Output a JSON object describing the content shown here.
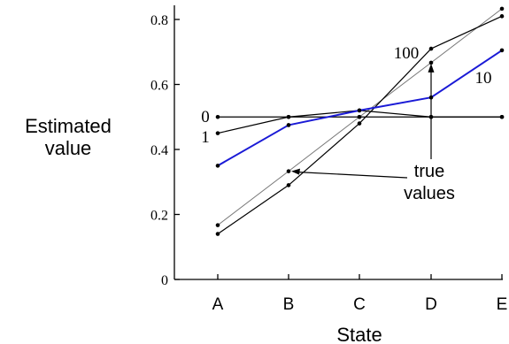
{
  "chart_data": {
    "type": "line",
    "title": "",
    "xlabel": "State",
    "ylabel_lines": [
      "Estimated",
      "value"
    ],
    "categories": [
      "A",
      "B",
      "C",
      "D",
      "E"
    ],
    "yticks": [
      "0",
      "0.2",
      "0.4",
      "0.6",
      "0.8"
    ],
    "ylim": [
      0,
      0.84
    ],
    "grid": false,
    "series": [
      {
        "name": "0",
        "values": [
          0.5,
          0.5,
          0.5,
          0.5,
          0.5
        ],
        "color": "#000000"
      },
      {
        "name": "1",
        "values": [
          0.45,
          0.5,
          0.52,
          0.5,
          0.5
        ],
        "color": "#000000"
      },
      {
        "name": "10",
        "values": [
          0.35,
          0.475,
          0.52,
          0.56,
          0.705
        ],
        "color": "#1a1ad6"
      },
      {
        "name": "100",
        "values": [
          0.14,
          0.29,
          0.48,
          0.71,
          0.81
        ],
        "color": "#000000"
      },
      {
        "name": "true values",
        "values": [
          0.167,
          0.333,
          0.5,
          0.667,
          0.833
        ],
        "color": "#777777"
      }
    ],
    "annotations": [
      "true",
      "values"
    ]
  }
}
